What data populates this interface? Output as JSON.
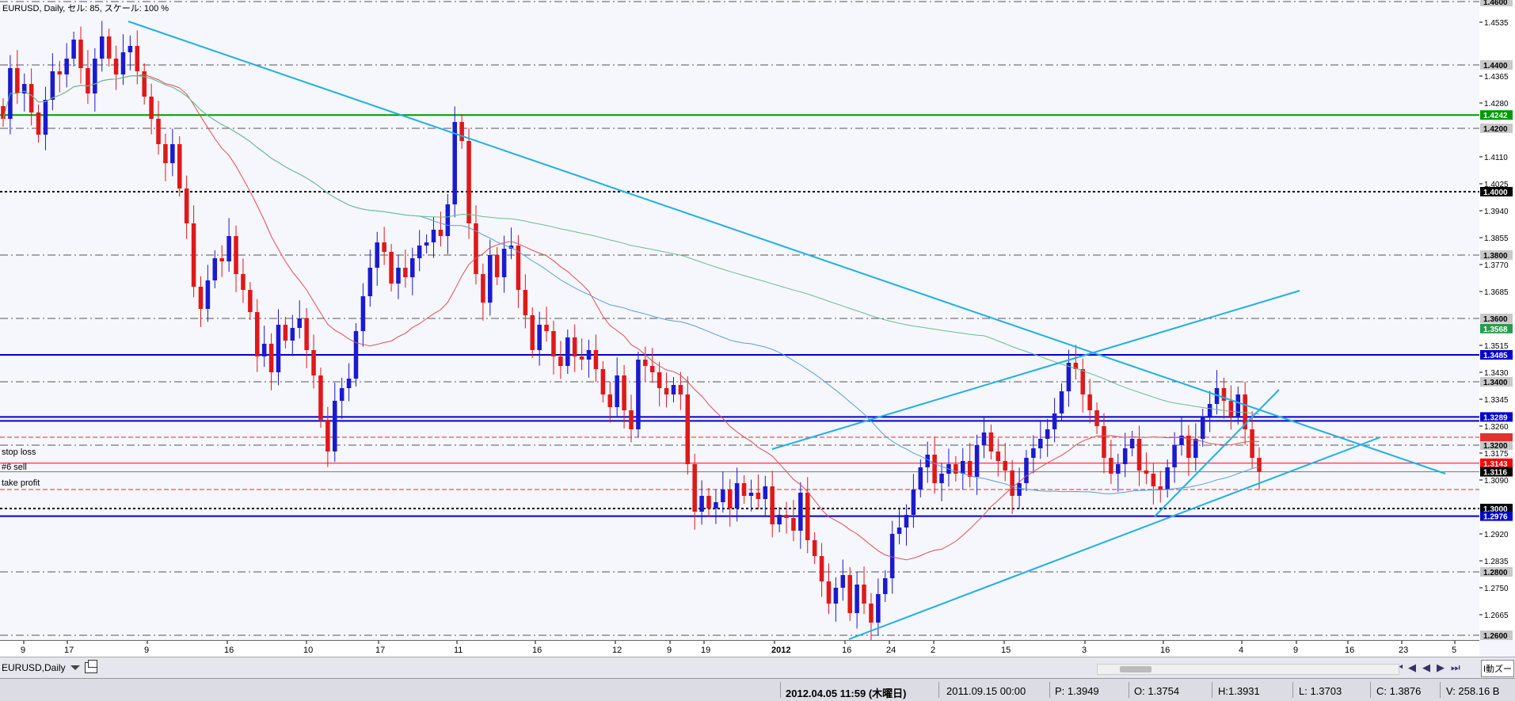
{
  "chart_title": "EURUSD, Daily,  セル: 85,  スケール: 100 %",
  "level_labels": [
    "stop loss",
    "#6 sell",
    "take profit"
  ],
  "tab": {
    "label": "EURUSD,Daily"
  },
  "zoom_button": "I動ズー",
  "status": {
    "date": "2012.04.05 11:59 (木曜日)",
    "ohlc_time": "2011.09.15 00:00",
    "p": "P: 1.3949",
    "o": "O: 1.3754",
    "h": "H:1.3931",
    "l": "L: 1.3703",
    "c": "C: 1.3876",
    "v": "V: 258.16 B"
  },
  "colors": {
    "bull": "#1a1ad0",
    "bear": "#e01818",
    "trendline": "#1fb0e8",
    "ma_fast": "#e05050",
    "ma_mid": "#5aa0d8",
    "ma_slow": "#6abf8a",
    "level_blue": "#0000cc",
    "level_green": "#009900",
    "level_red": "#ff0000"
  },
  "chart_data": {
    "type": "candlestick",
    "symbol": "EURUSD",
    "timeframe": "Daily",
    "y_range": [
      1.2585,
      1.4605
    ],
    "price_ticks": [
      "1.4535",
      "1.4365",
      "1.4280",
      "1.4110",
      "1.4025",
      "1.3940",
      "1.3855",
      "1.3770",
      "1.3685",
      "1.3515",
      "1.3430",
      "1.3345",
      "1.3260",
      "1.3175",
      "1.3090",
      "1.2920",
      "1.2835",
      "1.2750",
      "1.2665"
    ],
    "time_ticks": [
      "9",
      "17",
      "9",
      "16",
      "10",
      "17",
      "11",
      "16",
      "12",
      "9",
      "19",
      "2012",
      "16",
      "24",
      "2",
      "15",
      "3",
      "16",
      "4",
      "9",
      "16",
      "23",
      "5"
    ],
    "horizontal_levels": [
      {
        "price": 1.46,
        "label": "1.4600",
        "style": "dash-gray"
      },
      {
        "price": 1.44,
        "label": "1.4400",
        "style": "dash-gray"
      },
      {
        "price": 1.4242,
        "label": "1.4242",
        "style": "solid-green"
      },
      {
        "price": 1.42,
        "label": "1.4200",
        "style": "dash-gray"
      },
      {
        "price": 1.4,
        "label": "1.4000",
        "style": "dot-black"
      },
      {
        "price": 1.38,
        "label": "1.3800",
        "style": "dash-gray"
      },
      {
        "price": 1.36,
        "label": "1.3600",
        "style": "dash-gray"
      },
      {
        "price": 1.3568,
        "label": "1.3568",
        "style": "ma-green"
      },
      {
        "price": 1.3485,
        "label": "1.3485",
        "style": "solid-blue"
      },
      {
        "price": 1.34,
        "label": "1.3400",
        "style": "dash-gray"
      },
      {
        "price": 1.3289,
        "label": "1.3289",
        "style": "solid-blue-double"
      },
      {
        "price": 1.32,
        "label": "1.3200",
        "style": "dash-gray"
      },
      {
        "price": 1.3143,
        "label": "1.3143",
        "style": "solid-red"
      },
      {
        "price": 1.3116,
        "label": "1.3116",
        "style": "bid-black"
      },
      {
        "price": 1.3,
        "label": "1.3000",
        "style": "dot-black"
      },
      {
        "price": 1.2976,
        "label": "1.2976",
        "style": "solid-blue"
      },
      {
        "price": 1.28,
        "label": "1.2800",
        "style": "dash-gray"
      },
      {
        "price": 1.26,
        "label": "1.2600",
        "style": "dash-gray"
      }
    ],
    "candles_close": [
      1.423,
      1.439,
      1.431,
      1.434,
      1.425,
      1.418,
      1.429,
      1.438,
      1.437,
      1.442,
      1.448,
      1.439,
      1.431,
      1.442,
      1.449,
      1.442,
      1.437,
      1.444,
      1.446,
      1.438,
      1.43,
      1.423,
      1.415,
      1.409,
      1.415,
      1.401,
      1.39,
      1.37,
      1.363,
      1.372,
      1.379,
      1.378,
      1.386,
      1.374,
      1.369,
      1.362,
      1.348,
      1.352,
      1.343,
      1.358,
      1.353,
      1.357,
      1.36,
      1.35,
      1.342,
      1.328,
      1.318,
      1.334,
      1.338,
      1.341,
      1.356,
      1.367,
      1.376,
      1.384,
      1.381,
      1.371,
      1.376,
      1.373,
      1.379,
      1.383,
      1.384,
      1.388,
      1.386,
      1.396,
      1.422,
      1.416,
      1.39,
      1.374,
      1.365,
      1.38,
      1.373,
      1.382,
      1.383,
      1.369,
      1.361,
      1.35,
      1.358,
      1.356,
      1.348,
      1.345,
      1.354,
      1.348,
      1.347,
      1.35,
      1.344,
      1.336,
      1.332,
      1.342,
      1.331,
      1.325,
      1.347,
      1.345,
      1.343,
      1.338,
      1.336,
      1.339,
      1.336,
      1.314,
      1.299,
      1.304,
      1.3,
      1.302,
      1.306,
      1.3,
      1.308,
      1.304,
      1.305,
      1.303,
      1.307,
      1.295,
      1.298,
      1.297,
      1.293,
      1.305,
      1.29,
      1.285,
      1.277,
      1.27,
      1.275,
      1.279,
      1.267,
      1.276,
      1.27,
      1.264,
      1.273,
      1.278,
      1.292,
      1.294,
      1.298,
      1.306,
      1.313,
      1.317,
      1.308,
      1.311,
      1.314,
      1.311,
      1.315,
      1.31,
      1.32,
      1.324,
      1.318,
      1.315,
      1.312,
      1.304,
      1.308,
      1.316,
      1.319,
      1.322,
      1.325,
      1.33,
      1.337,
      1.346,
      1.344,
      1.336,
      1.331,
      1.326,
      1.316,
      1.311,
      1.314,
      1.319,
      1.322,
      1.312,
      1.311,
      1.307,
      1.306,
      1.313,
      1.32,
      1.323,
      1.316,
      1.322,
      1.329,
      1.333,
      1.338,
      1.334,
      1.329,
      1.336,
      1.325,
      1.316,
      1.3116
    ]
  }
}
